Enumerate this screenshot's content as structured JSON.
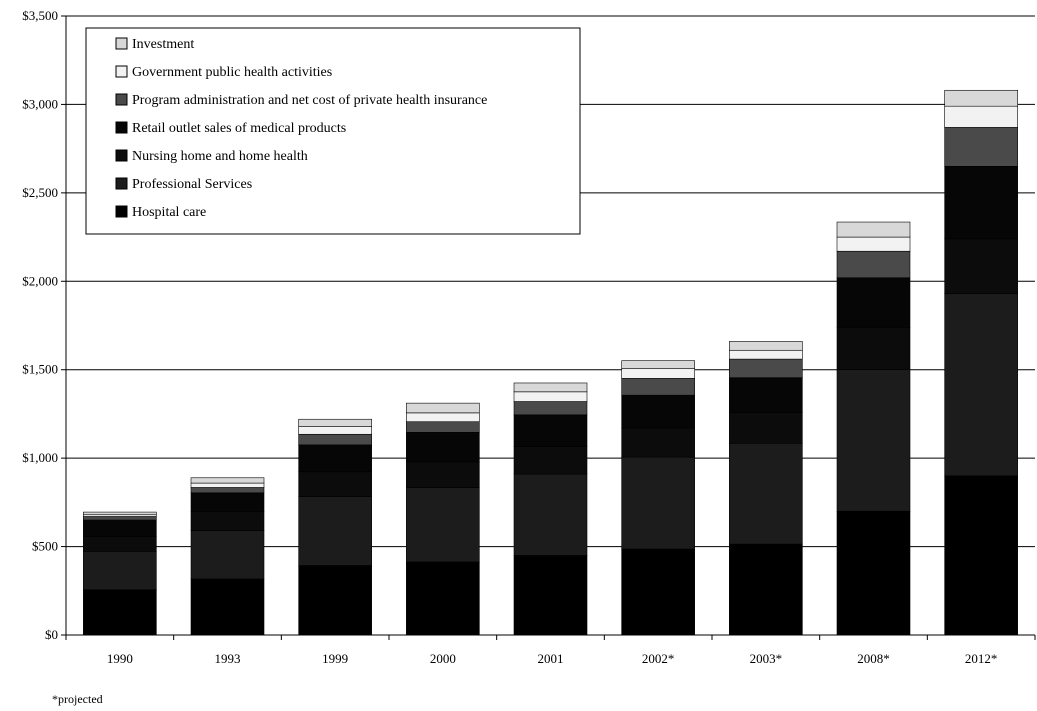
{
  "chart_data": {
    "type": "bar",
    "stacked": true,
    "categories": [
      "1990",
      "1993",
      "1999",
      "2000",
      "2001",
      "2002*",
      "2003*",
      "2008*",
      "2012*"
    ],
    "series": [
      {
        "name": "Hospital care",
        "color": "#000000",
        "values": [
          256,
          317,
          393,
          413,
          450,
          486,
          514,
          700,
          900
        ]
      },
      {
        "name": "Professional Services",
        "color": "#1c1c1c",
        "values": [
          217,
          274,
          390,
          420,
          460,
          520,
          570,
          800,
          1030
        ]
      },
      {
        "name": "Nursing home and home health",
        "color": "#0c0c0c",
        "values": [
          83,
          106,
          140,
          145,
          155,
          165,
          175,
          240,
          310
        ]
      },
      {
        "name": "Retail outlet sales of medical products",
        "color": "#060606",
        "values": [
          94,
          107,
          152,
          168,
          180,
          185,
          196,
          280,
          410
        ]
      },
      {
        "name": "Program administration and net cost of private health insurance",
        "color": "#4a4a4a",
        "values": [
          20,
          30,
          60,
          60,
          75,
          95,
          105,
          150,
          220
        ]
      },
      {
        "name": "Government public health activities",
        "color": "#f2f2f2",
        "values": [
          10,
          25,
          45,
          50,
          55,
          55,
          50,
          80,
          120
        ]
      },
      {
        "name": "Investment",
        "color": "#d8d8d8",
        "values": [
          15,
          30,
          40,
          55,
          50,
          45,
          50,
          85,
          90
        ]
      }
    ],
    "y_ticks": [
      "$0",
      "$500",
      "$1,000",
      "$1,500",
      "$2,000",
      "$2,500",
      "$3,000",
      "$3,500"
    ],
    "ylim": [
      0,
      3500
    ],
    "y_step": 500,
    "legend_order": [
      "Investment",
      "Government public health activities",
      "Program administration and net cost of private health insurance",
      "Retail outlet sales of medical products",
      "Nursing home and home health",
      "Professional Services",
      "Hospital care"
    ],
    "legend_position": "top-left",
    "gridlines": true
  },
  "footnote": "*projected"
}
